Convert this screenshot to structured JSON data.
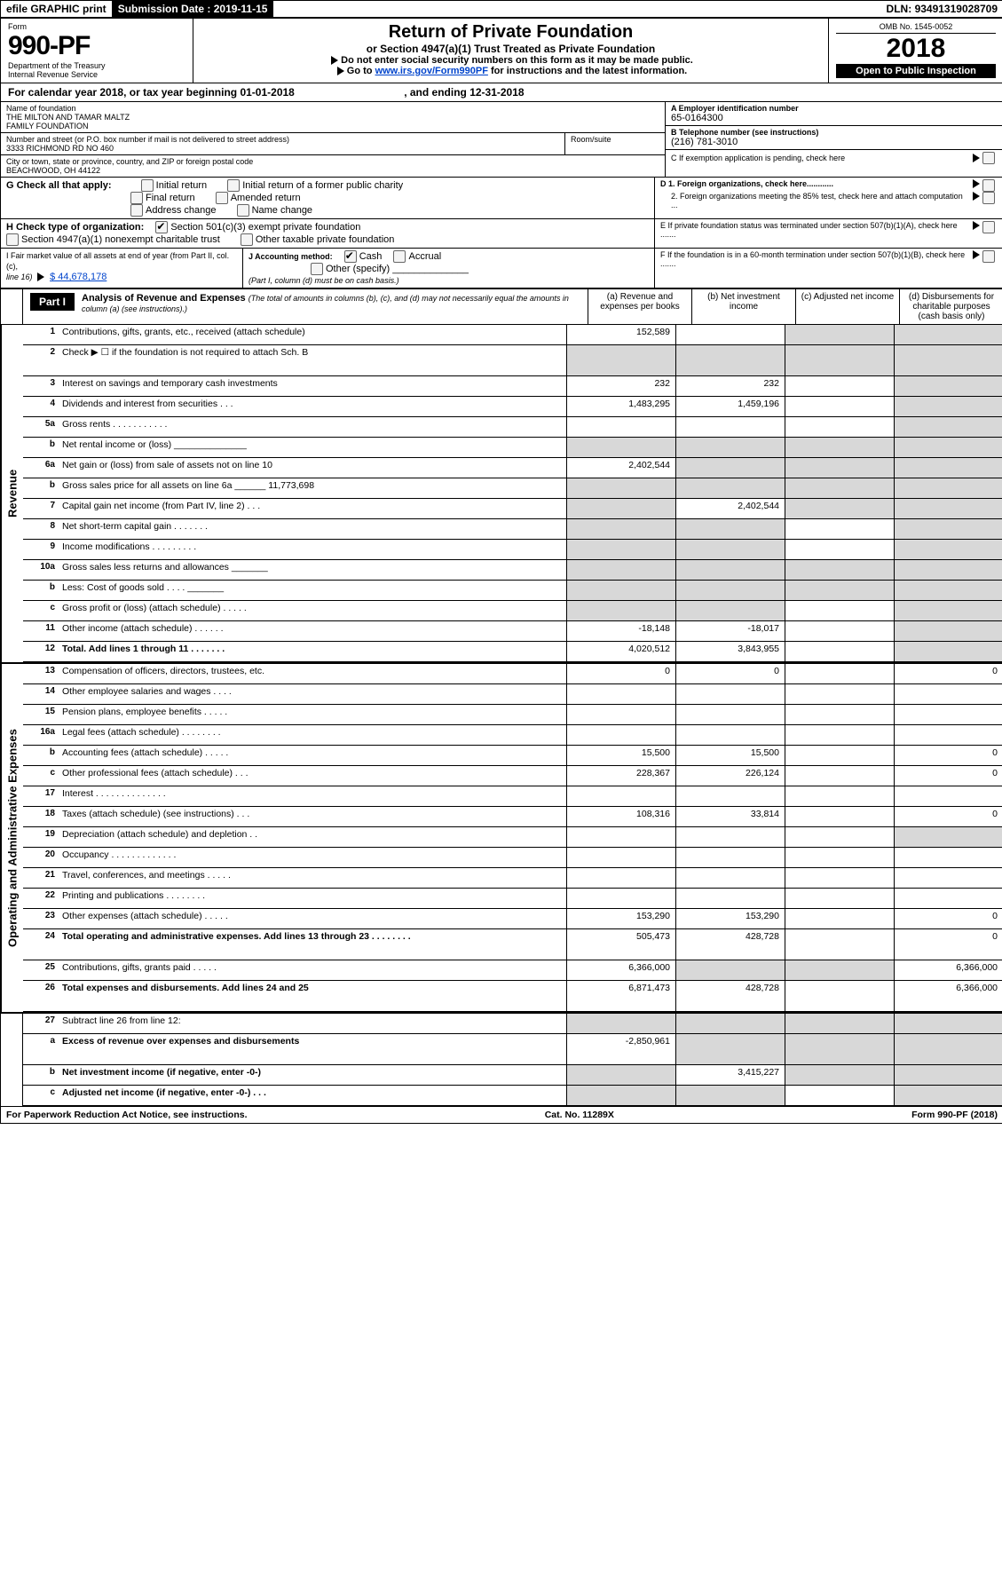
{
  "topbar": {
    "efile": "efile GRAPHIC print",
    "submission_label": "Submission Date :",
    "submission_date": "2019-11-15",
    "dln_label": "DLN:",
    "dln": "93491319028709"
  },
  "header": {
    "form_word": "Form",
    "form_no": "990-PF",
    "dept1": "Department of the Treasury",
    "dept2": "Internal Revenue Service",
    "title": "Return of Private Foundation",
    "subtitle": "or Section 4947(a)(1) Trust Treated as Private Foundation",
    "warn1": "Do not enter social security numbers on this form as it may be made public.",
    "warn2_pre": "Go to ",
    "warn2_link": "www.irs.gov/Form990PF",
    "warn2_post": " for instructions and the latest information.",
    "omb": "OMB No. 1545-0052",
    "year": "2018",
    "open_public": "Open to Public Inspection"
  },
  "calendar": {
    "text_pre": "For calendar year 2018, or tax year beginning ",
    "begin": "01-01-2018",
    "mid": " , and ending ",
    "end": "12-31-2018"
  },
  "name_block": {
    "name_label": "Name of foundation",
    "name1": "THE MILTON AND TAMAR MALTZ",
    "name2": "FAMILY FOUNDATION",
    "addr_label": "Number and street (or P.O. box number if mail is not delivered to street address)",
    "room_label": "Room/suite",
    "addr": "3333 RICHMOND RD NO 460",
    "city_label": "City or town, state or province, country, and ZIP or foreign postal code",
    "city": "BEACHWOOD, OH  44122"
  },
  "right_block": {
    "a_label": "A Employer identification number",
    "a_val": "65-0164300",
    "b_label": "B Telephone number (see instructions)",
    "b_val": "(216) 781-3010",
    "c_label": "C If exemption application is pending, check here",
    "d1_label": "D 1. Foreign organizations, check here............",
    "d2_label": "2. Foreign organizations meeting the 85% test, check here and attach computation ...",
    "e_label": "E  If private foundation status was terminated under section 507(b)(1)(A), check here .......",
    "f_label": "F  If the foundation is in a 60-month termination under section 507(b)(1)(B), check here .......",
    "h_label": "H Check type of organization:",
    "h_opt1": "Section 501(c)(3) exempt private foundation",
    "h_opt2": "Section 4947(a)(1) nonexempt charitable trust",
    "h_opt3": "Other taxable private foundation",
    "i_label": "I Fair market value of all assets at end of year (from Part II, col. (c),",
    "i_line": "line 16) ",
    "i_val": "$  44,678,178",
    "j_label": "J Accounting method:",
    "j_cash": "Cash",
    "j_accrual": "Accrual",
    "j_other": "Other (specify)",
    "j_note": "(Part I, column (d) must be on cash basis.)"
  },
  "g_block": {
    "label": "G Check all that apply:",
    "opts": [
      "Initial return",
      "Initial return of a former public charity",
      "Final return",
      "Amended return",
      "Address change",
      "Name change"
    ]
  },
  "part1": {
    "label": "Part I",
    "title": "Analysis of Revenue and Expenses",
    "note": " (The total of amounts in columns (b), (c), and (d) may not necessarily equal the amounts in column (a) (see instructions).)",
    "cols": {
      "a": "(a)   Revenue and expenses per books",
      "b": "(b)   Net investment income",
      "c": "(c)   Adjusted net income",
      "d": "(d)   Disbursements for charitable purposes (cash basis only)"
    }
  },
  "rows": [
    {
      "n": "1",
      "lbl": "Contributions, gifts, grants, etc., received (attach schedule)",
      "a": "152,589",
      "b": "",
      "c": "grey",
      "d": "grey"
    },
    {
      "n": "2",
      "lbl": "Check ▶ ☐ if the foundation is not required to attach Sch. B",
      "a": "grey",
      "b": "grey",
      "c": "grey",
      "d": "grey",
      "tall": true
    },
    {
      "n": "3",
      "lbl": "Interest on savings and temporary cash investments",
      "a": "232",
      "b": "232",
      "c": "",
      "d": "grey"
    },
    {
      "n": "4",
      "lbl": "Dividends and interest from securities  .  .  .",
      "a": "1,483,295",
      "b": "1,459,196",
      "c": "",
      "d": "grey"
    },
    {
      "n": "5a",
      "lbl": "Gross rents  .  .  .  .  .  .  .  .  .  .  .",
      "a": "",
      "b": "",
      "c": "",
      "d": "grey"
    },
    {
      "n": "b",
      "lbl": "Net rental income or (loss)  ______________",
      "a": "grey",
      "b": "grey",
      "c": "grey",
      "d": "grey"
    },
    {
      "n": "6a",
      "lbl": "Net gain or (loss) from sale of assets not on line 10",
      "a": "2,402,544",
      "b": "grey",
      "c": "grey",
      "d": "grey"
    },
    {
      "n": "b",
      "lbl": "Gross sales price for all assets on line 6a ______ 11,773,698",
      "a": "grey",
      "b": "grey",
      "c": "grey",
      "d": "grey"
    },
    {
      "n": "7",
      "lbl": "Capital gain net income (from Part IV, line 2)  .  .  .",
      "a": "grey",
      "b": "2,402,544",
      "c": "grey",
      "d": "grey"
    },
    {
      "n": "8",
      "lbl": "Net short-term capital gain  .  .  .  .  .  .  .",
      "a": "grey",
      "b": "grey",
      "c": "",
      "d": "grey"
    },
    {
      "n": "9",
      "lbl": "Income modifications  .  .  .  .  .  .  .  .  .",
      "a": "grey",
      "b": "grey",
      "c": "",
      "d": "grey"
    },
    {
      "n": "10a",
      "lbl": "Gross sales less returns and allowances  _______",
      "a": "grey",
      "b": "grey",
      "c": "grey",
      "d": "grey"
    },
    {
      "n": "b",
      "lbl": "Less: Cost of goods sold  .  .  .  .  _______",
      "a": "grey",
      "b": "grey",
      "c": "grey",
      "d": "grey"
    },
    {
      "n": "c",
      "lbl": "Gross profit or (loss) (attach schedule)  .  .  .  .  .",
      "a": "grey",
      "b": "grey",
      "c": "",
      "d": "grey"
    },
    {
      "n": "11",
      "lbl": "Other income (attach schedule)  .  .  .  .  .  .",
      "a": "-18,148",
      "b": "-18,017",
      "c": "",
      "d": "grey"
    },
    {
      "n": "12",
      "lbl": "Total. Add lines 1 through 11  .  .  .  .  .  .  .",
      "a": "4,020,512",
      "b": "3,843,955",
      "c": "",
      "d": "grey",
      "bold": true
    }
  ],
  "exp_rows": [
    {
      "n": "13",
      "lbl": "Compensation of officers, directors, trustees, etc.",
      "a": "0",
      "b": "0",
      "c": "",
      "d": "0"
    },
    {
      "n": "14",
      "lbl": "Other employee salaries and wages  .  .  .  .",
      "a": "",
      "b": "",
      "c": "",
      "d": ""
    },
    {
      "n": "15",
      "lbl": "Pension plans, employee benefits  .  .  .  .  .",
      "a": "",
      "b": "",
      "c": "",
      "d": ""
    },
    {
      "n": "16a",
      "lbl": "Legal fees (attach schedule)  .  .  .  .  .  .  .  .",
      "a": "",
      "b": "",
      "c": "",
      "d": ""
    },
    {
      "n": "b",
      "lbl": "Accounting fees (attach schedule)  .  .  .  .  .",
      "a": "15,500",
      "b": "15,500",
      "c": "",
      "d": "0"
    },
    {
      "n": "c",
      "lbl": "Other professional fees (attach schedule)  .  .  .",
      "a": "228,367",
      "b": "226,124",
      "c": "",
      "d": "0"
    },
    {
      "n": "17",
      "lbl": "Interest  .  .  .  .  .  .  .  .  .  .  .  .  .  .",
      "a": "",
      "b": "",
      "c": "",
      "d": ""
    },
    {
      "n": "18",
      "lbl": "Taxes (attach schedule) (see instructions)  .  .  .",
      "a": "108,316",
      "b": "33,814",
      "c": "",
      "d": "0"
    },
    {
      "n": "19",
      "lbl": "Depreciation (attach schedule) and depletion  .  .",
      "a": "",
      "b": "",
      "c": "",
      "d": "grey"
    },
    {
      "n": "20",
      "lbl": "Occupancy  .  .  .  .  .  .  .  .  .  .  .  .  .",
      "a": "",
      "b": "",
      "c": "",
      "d": ""
    },
    {
      "n": "21",
      "lbl": "Travel, conferences, and meetings  .  .  .  .  .",
      "a": "",
      "b": "",
      "c": "",
      "d": ""
    },
    {
      "n": "22",
      "lbl": "Printing and publications  .  .  .  .  .  .  .  .",
      "a": "",
      "b": "",
      "c": "",
      "d": ""
    },
    {
      "n": "23",
      "lbl": "Other expenses (attach schedule)  .  .  .  .  .",
      "a": "153,290",
      "b": "153,290",
      "c": "",
      "d": "0"
    },
    {
      "n": "24",
      "lbl": "Total operating and administrative expenses. Add lines 13 through 23  .  .  .  .  .  .  .  .",
      "a": "505,473",
      "b": "428,728",
      "c": "",
      "d": "0",
      "bold": true,
      "tall": true
    },
    {
      "n": "25",
      "lbl": "Contributions, gifts, grants paid  .  .  .  .  .",
      "a": "6,366,000",
      "b": "grey",
      "c": "grey",
      "d": "6,366,000"
    },
    {
      "n": "26",
      "lbl": "Total expenses and disbursements. Add lines 24 and 25",
      "a": "6,871,473",
      "b": "428,728",
      "c": "",
      "d": "6,366,000",
      "bold": true,
      "tall": true
    }
  ],
  "sub_rows": [
    {
      "n": "27",
      "lbl": "Subtract line 26 from line 12:",
      "a": "grey",
      "b": "grey",
      "c": "grey",
      "d": "grey"
    },
    {
      "n": "a",
      "lbl": "Excess of revenue over expenses and disbursements",
      "a": "-2,850,961",
      "b": "grey",
      "c": "grey",
      "d": "grey",
      "bold": true,
      "tall": true
    },
    {
      "n": "b",
      "lbl": "Net investment income (if negative, enter -0-)",
      "a": "grey",
      "b": "3,415,227",
      "c": "grey",
      "d": "grey",
      "bold": true
    },
    {
      "n": "c",
      "lbl": "Adjusted net income (if negative, enter -0-)  .  .  .",
      "a": "grey",
      "b": "grey",
      "c": "",
      "d": "grey",
      "bold": true
    }
  ],
  "side_labels": {
    "revenue": "Revenue",
    "expenses": "Operating and Administrative Expenses"
  },
  "footer": {
    "left": "For Paperwork Reduction Act Notice, see instructions.",
    "mid": "Cat. No. 11289X",
    "right": "Form 990-PF (2018)"
  }
}
